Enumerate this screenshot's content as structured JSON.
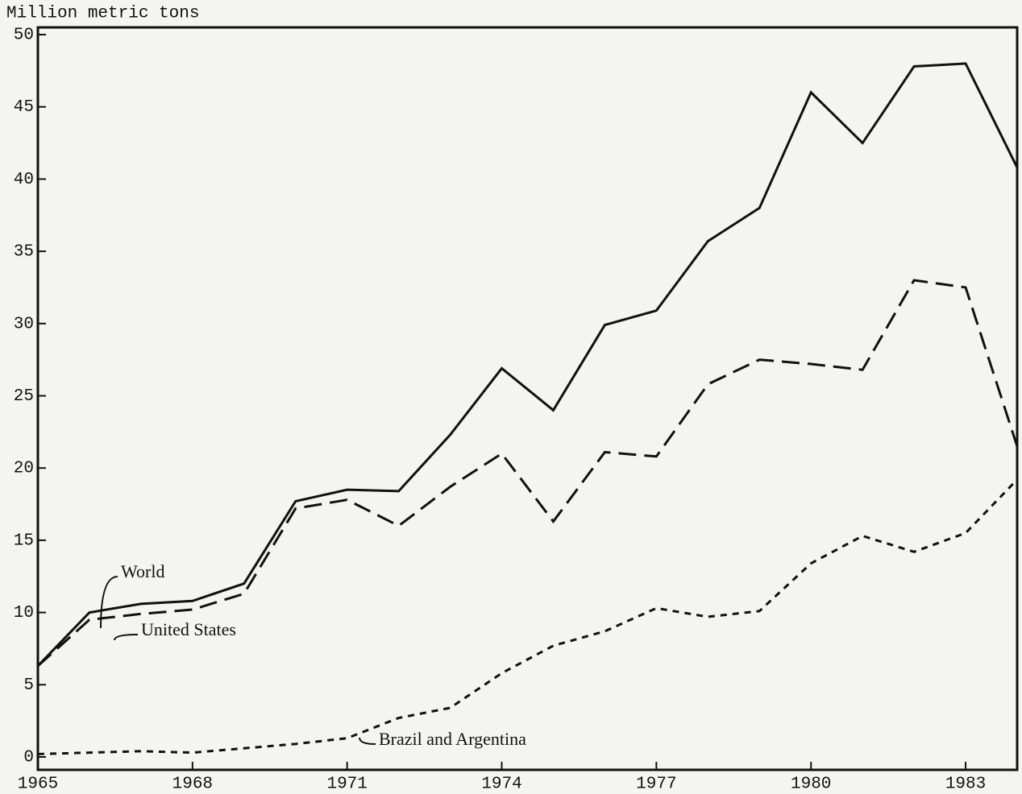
{
  "chart_data": {
    "type": "line",
    "y_axis_label": "Million metric tons",
    "x": [
      1965,
      1966,
      1967,
      1968,
      1969,
      1970,
      1971,
      1972,
      1973,
      1974,
      1975,
      1976,
      1977,
      1978,
      1979,
      1980,
      1981,
      1982,
      1983,
      1984
    ],
    "series": [
      {
        "name": "World",
        "color": "#111111",
        "dash": "solid",
        "values": [
          6.3,
          10.0,
          10.6,
          10.8,
          12.0,
          17.7,
          18.5,
          18.4,
          22.3,
          26.9,
          24.0,
          29.9,
          30.9,
          35.7,
          38.0,
          46.0,
          42.5,
          47.8,
          48.0,
          40.8
        ]
      },
      {
        "name": "United States",
        "color": "#111111",
        "dash": "long",
        "values": [
          6.3,
          9.5,
          9.9,
          10.2,
          11.3,
          17.2,
          17.8,
          16.0,
          18.7,
          21.0,
          16.3,
          21.1,
          20.8,
          25.8,
          27.5,
          27.2,
          26.8,
          33.0,
          32.5,
          21.5
        ]
      },
      {
        "name": "Brazil and Argentina",
        "color": "#111111",
        "dash": "short",
        "values": [
          0.2,
          0.3,
          0.4,
          0.3,
          0.6,
          0.9,
          1.3,
          2.7,
          3.4,
          5.8,
          7.7,
          8.7,
          10.3,
          9.7,
          10.1,
          13.4,
          15.3,
          14.2,
          15.5,
          19.2
        ]
      }
    ],
    "xlim": [
      1965,
      1984
    ],
    "xticks": [
      1965,
      1968,
      1971,
      1974,
      1977,
      1980,
      1983
    ],
    "ylim": [
      0,
      50
    ],
    "yticks": [
      0,
      5,
      10,
      15,
      20,
      25,
      30,
      35,
      40,
      45,
      50
    ]
  }
}
